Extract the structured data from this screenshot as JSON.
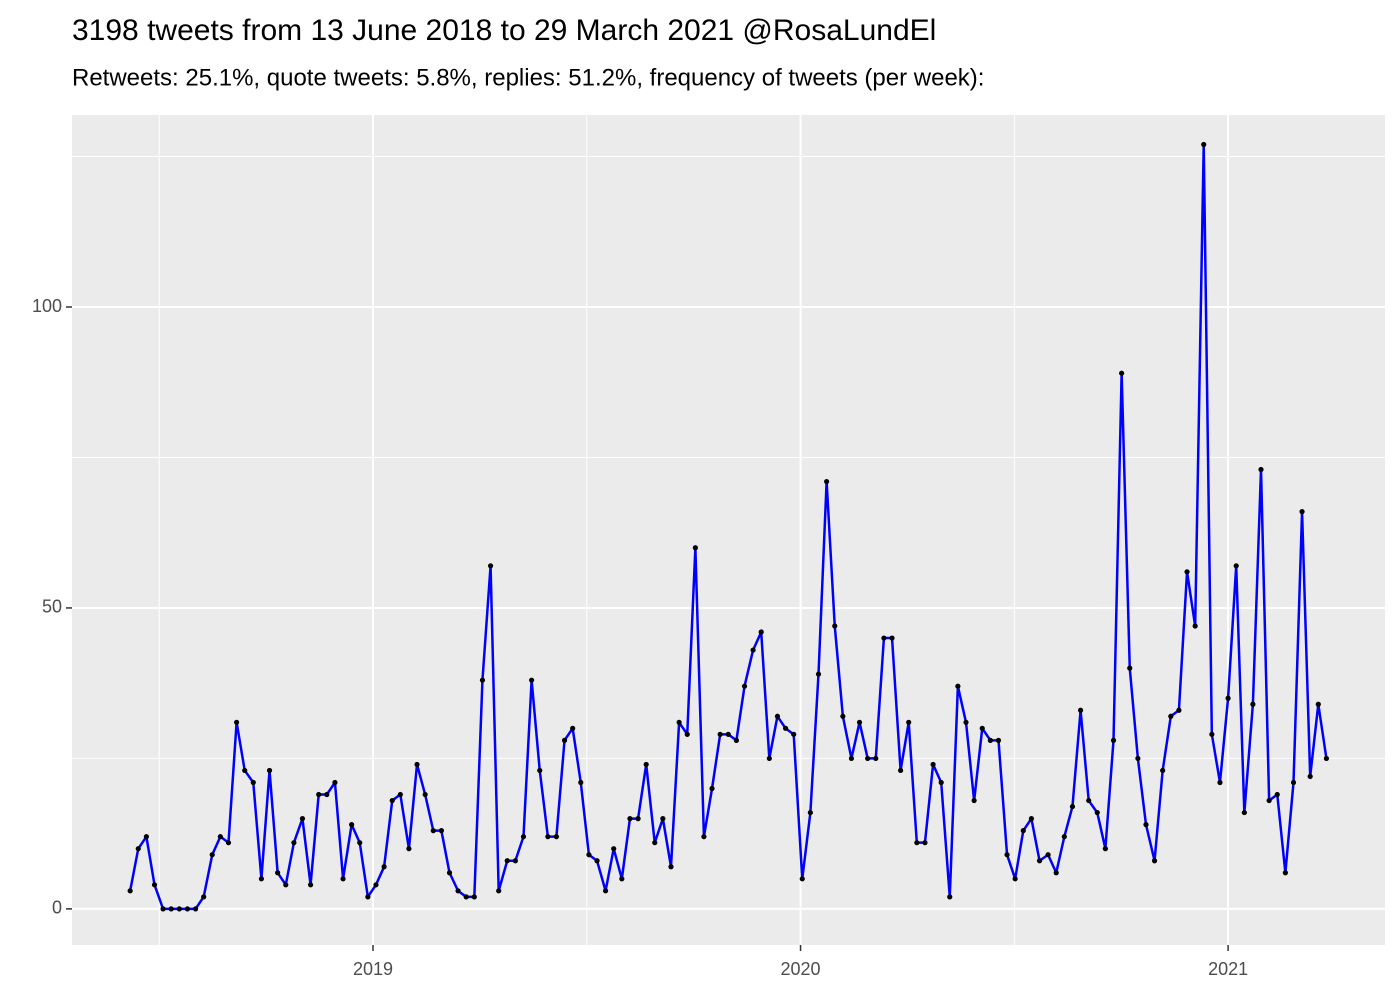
{
  "chart_data": {
    "type": "line",
    "title": "3198 tweets from 13 June 2018 to 29 March 2021 @RosaLundEl",
    "subtitle": "Retweets: 25.1%, quote tweets: 5.8%, replies: 51.2%, frequency of tweets (per week):",
    "x": [
      2018.432,
      2018.451,
      2018.47,
      2018.489,
      2018.509,
      2018.528,
      2018.547,
      2018.566,
      2018.585,
      2018.604,
      2018.624,
      2018.643,
      2018.662,
      2018.681,
      2018.7,
      2018.72,
      2018.739,
      2018.758,
      2018.777,
      2018.796,
      2018.815,
      2018.835,
      2018.854,
      2018.873,
      2018.892,
      2018.911,
      2018.93,
      2018.95,
      2018.969,
      2018.988,
      2019.007,
      2019.026,
      2019.045,
      2019.064,
      2019.084,
      2019.103,
      2019.122,
      2019.141,
      2019.16,
      2019.179,
      2019.199,
      2019.218,
      2019.237,
      2019.256,
      2019.275,
      2019.294,
      2019.314,
      2019.333,
      2019.352,
      2019.371,
      2019.39,
      2019.409,
      2019.429,
      2019.448,
      2019.467,
      2019.486,
      2019.505,
      2019.524,
      2019.544,
      2019.563,
      2019.582,
      2019.601,
      2019.62,
      2019.639,
      2019.659,
      2019.678,
      2019.697,
      2019.716,
      2019.735,
      2019.754,
      2019.774,
      2019.793,
      2019.812,
      2019.831,
      2019.85,
      2019.869,
      2019.889,
      2019.908,
      2019.927,
      2019.946,
      2019.965,
      2019.984,
      2020.004,
      2020.023,
      2020.042,
      2020.061,
      2020.08,
      2020.099,
      2020.119,
      2020.138,
      2020.157,
      2020.176,
      2020.195,
      2020.214,
      2020.234,
      2020.253,
      2020.272,
      2020.291,
      2020.31,
      2020.329,
      2020.349,
      2020.368,
      2020.387,
      2020.406,
      2020.425,
      2020.444,
      2020.463,
      2020.483,
      2020.502,
      2020.521,
      2020.54,
      2020.559,
      2020.579,
      2020.598,
      2020.617,
      2020.636,
      2020.655,
      2020.674,
      2020.694,
      2020.713,
      2020.732,
      2020.751,
      2020.77,
      2020.789,
      2020.808,
      2020.828,
      2020.847,
      2020.866,
      2020.885,
      2020.904,
      2020.923,
      2020.943,
      2020.962,
      2020.981,
      2021.0,
      2021.019,
      2021.038,
      2021.058,
      2021.077,
      2021.096,
      2021.115,
      2021.134,
      2021.153,
      2021.173,
      2021.192,
      2021.211,
      2021.23
    ],
    "values": [
      3,
      10,
      12,
      4,
      0,
      0,
      0,
      0,
      0,
      2,
      9,
      12,
      11,
      31,
      23,
      21,
      5,
      23,
      6,
      4,
      11,
      15,
      4,
      19,
      19,
      21,
      5,
      14,
      11,
      2,
      4,
      7,
      18,
      19,
      10,
      24,
      19,
      13,
      13,
      6,
      3,
      2,
      2,
      38,
      57,
      3,
      8,
      8,
      12,
      38,
      23,
      12,
      12,
      28,
      30,
      21,
      9,
      8,
      3,
      10,
      5,
      15,
      15,
      24,
      11,
      15,
      7,
      31,
      29,
      60,
      12,
      20,
      29,
      29,
      28,
      37,
      43,
      46,
      25,
      32,
      30,
      29,
      5,
      16,
      39,
      71,
      47,
      32,
      25,
      31,
      25,
      25,
      45,
      45,
      23,
      31,
      11,
      11,
      24,
      21,
      2,
      37,
      31,
      18,
      30,
      28,
      28,
      9,
      5,
      13,
      15,
      8,
      9,
      6,
      12,
      17,
      33,
      18,
      16,
      10,
      28,
      89,
      40,
      25,
      14,
      8,
      23,
      32,
      33,
      56,
      47,
      127,
      29,
      21,
      35,
      57,
      16,
      34,
      73,
      18,
      19,
      6,
      21,
      66,
      22,
      34,
      25
    ],
    "color": "#0000ff",
    "point_color": "#000000",
    "xlim": [
      2018.296,
      2021.367
    ],
    "xticks": [
      2019,
      2020,
      2021
    ],
    "xminorticks": [
      2018.5,
      2019.5,
      2020.5
    ],
    "ylim": [
      -6,
      131.9
    ],
    "yticks": [
      0,
      50,
      100
    ],
    "yminorticks": [
      25,
      75,
      125
    ],
    "grid": true
  }
}
